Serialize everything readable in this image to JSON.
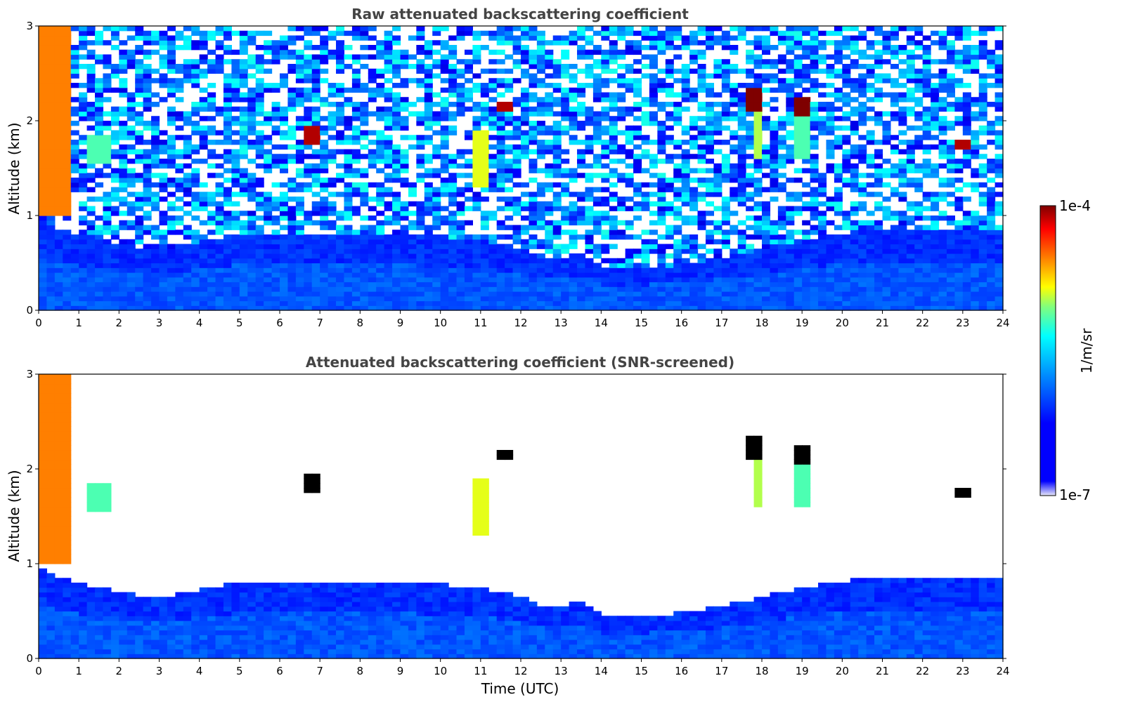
{
  "colors": {
    "jet": [
      "#00007f",
      "#0000ff",
      "#007fff",
      "#00ffff",
      "#7fff7f",
      "#ffff00",
      "#ff7f00",
      "#ff0000",
      "#7f0000"
    ],
    "screen_fill": "#ffffff",
    "over": "#000000"
  },
  "colorbar": {
    "max_label": "1e-4",
    "min_label": "1e-7",
    "unit_label": "1/m/sr",
    "scale": "log",
    "range": [
      1e-07,
      0.0001
    ]
  },
  "chart_data": [
    {
      "type": "heatmap",
      "title": "Raw attenuated backscattering coefficient",
      "xlabel": "",
      "ylabel": "Altitude (km)",
      "xlim": [
        0,
        24
      ],
      "ylim": [
        0,
        3
      ],
      "xticks": [
        "0",
        "1",
        "2",
        "3",
        "4",
        "5",
        "6",
        "7",
        "8",
        "9",
        "10",
        "11",
        "12",
        "13",
        "14",
        "15",
        "16",
        "17",
        "18",
        "19",
        "20",
        "21",
        "22",
        "23",
        "24"
      ],
      "yticks": [
        "0",
        "1",
        "2",
        "3"
      ],
      "features": [
        {
          "t": 0.0,
          "t2": 0.7,
          "z": 1.0,
          "z2": 3.0,
          "level": 0.75
        },
        {
          "t": 1.4,
          "t2": 1.6,
          "z": 1.55,
          "z2": 1.85,
          "level": 0.45
        },
        {
          "t": 6.8,
          "t2": 6.9,
          "z": 1.75,
          "z2": 1.95,
          "level": 0.95
        },
        {
          "t": 10.95,
          "t2": 11.05,
          "z": 1.3,
          "z2": 1.9,
          "level": 0.6
        },
        {
          "t": 11.55,
          "t2": 11.7,
          "z": 2.12,
          "z2": 2.2,
          "level": 0.95
        },
        {
          "t": 17.75,
          "t2": 17.95,
          "z": 2.1,
          "z2": 2.35,
          "level": 1.0
        },
        {
          "t": 17.85,
          "t2": 17.95,
          "z": 1.6,
          "z2": 2.1,
          "level": 0.55
        },
        {
          "t": 18.95,
          "t2": 19.15,
          "z": 2.05,
          "z2": 2.25,
          "level": 1.0
        },
        {
          "t": 19.0,
          "t2": 19.1,
          "z": 1.6,
          "z2": 2.05,
          "level": 0.45
        },
        {
          "t": 22.95,
          "t2": 23.15,
          "z": 1.7,
          "z2": 1.78,
          "level": 0.95
        }
      ]
    },
    {
      "type": "heatmap",
      "title": "Attenuated backscattering coefficient (SNR-screened)",
      "xlabel": "Time (UTC)",
      "ylabel": "Altitude (km)",
      "xlim": [
        0,
        24
      ],
      "ylim": [
        0,
        3
      ],
      "xticks": [
        "0",
        "1",
        "2",
        "3",
        "4",
        "5",
        "6",
        "7",
        "8",
        "9",
        "10",
        "11",
        "12",
        "13",
        "14",
        "15",
        "16",
        "17",
        "18",
        "19",
        "20",
        "21",
        "22",
        "23",
        "24"
      ],
      "yticks": [
        "0",
        "1",
        "2",
        "3"
      ],
      "boundary_layer_top_km": [
        [
          0,
          0.95
        ],
        [
          1,
          0.8
        ],
        [
          2,
          0.7
        ],
        [
          3,
          0.65
        ],
        [
          4,
          0.72
        ],
        [
          5,
          0.82
        ],
        [
          6,
          0.8
        ],
        [
          7,
          0.8
        ],
        [
          8,
          0.82
        ],
        [
          9,
          0.8
        ],
        [
          10,
          0.78
        ],
        [
          11,
          0.75
        ],
        [
          12,
          0.65
        ],
        [
          12.5,
          0.55
        ],
        [
          13,
          0.55
        ],
        [
          13.5,
          0.62
        ],
        [
          14,
          0.45
        ],
        [
          15,
          0.45
        ],
        [
          16,
          0.48
        ],
        [
          17,
          0.55
        ],
        [
          18,
          0.65
        ],
        [
          19,
          0.75
        ],
        [
          20,
          0.82
        ],
        [
          21,
          0.85
        ],
        [
          22,
          0.85
        ],
        [
          23,
          0.85
        ],
        [
          24,
          0.85
        ]
      ]
    }
  ]
}
